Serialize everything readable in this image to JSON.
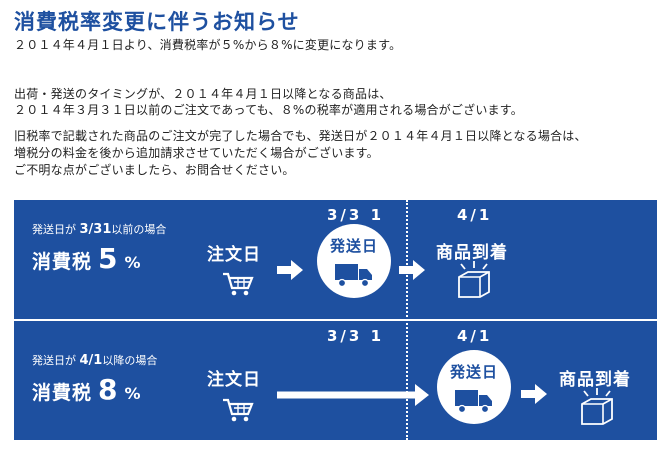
{
  "notice": {
    "title": "消費税率変更に伴うお知らせ",
    "line1": "２０１４年４月１日より、消費税率が５%から８%に変更になります。",
    "line2": "出荷・発送のタイミングが、２０１４年４月１日以降となる商品は、",
    "line3": "２０１４年３月３１日以前のご注文であっても、８%の税率が適用される場合がございます。",
    "line4": "旧税率で記載された商品のご注文が完了した場合でも、発送日が２０１４年４月１日以降となる場合は、",
    "line5": "増税分の料金を後から追加請求させていただく場合がございます。",
    "line6": "ご不明な点がございましたら、お問合せください。"
  },
  "diagram": {
    "rows": [
      {
        "condition_prefix": "発送日が",
        "condition_date": "3/31",
        "condition_suffix": "以前の場合",
        "tax_label": "消費税",
        "tax_rate": "5",
        "tax_unit": "%",
        "order_label": "注文日",
        "date_left": "3/3 1",
        "date_right": "4/1",
        "ship_label": "発送日",
        "arrival_label": "商品到着"
      },
      {
        "condition_prefix": "発送日が",
        "condition_date": "4/1",
        "condition_suffix": "以降の場合",
        "tax_label": "消費税",
        "tax_rate": "8",
        "tax_unit": "%",
        "order_label": "注文日",
        "date_left": "3/3 1",
        "date_right": "4/1",
        "ship_label": "発送日",
        "arrival_label": "商品到着"
      }
    ],
    "colors": {
      "panel": "#1e50a0",
      "title": "#1e50a0",
      "foreground": "#ffffff"
    },
    "icons": [
      "shopping-cart-icon",
      "arrow-right-icon",
      "delivery-truck-icon",
      "package-box-icon"
    ]
  }
}
